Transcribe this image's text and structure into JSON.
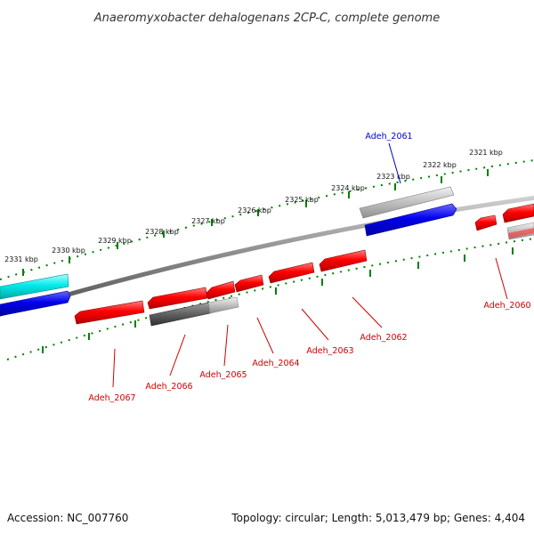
{
  "title": "Anaeromyxobacter dehalogenans 2CP-C, complete genome",
  "footer": {
    "accession": "Accession: NC_007760",
    "summary": "Topology: circular; Length: 5,013,479 bp; Genes: 4,404"
  },
  "scale_labels": [
    "2321 kbp",
    "2322 kbp",
    "2323 kbp",
    "2324 kbp",
    "2325 kbp",
    "2326 kbp",
    "2327 kbp",
    "2328 kbp",
    "2329 kbp",
    "2330 kbp",
    "2331 kbp"
  ],
  "gene_labels": [
    "Adeh_2060",
    "Adeh_2061",
    "Adeh_2062",
    "Adeh_2063",
    "Adeh_2064",
    "Adeh_2065",
    "Adeh_2066",
    "Adeh_2067"
  ],
  "colors": {
    "forward_gene": "#0000e0",
    "reverse_gene": "#e00000",
    "highlight_gene": "#00e6e6",
    "pseudo_gene": "#b0b0b0",
    "scale": "#008000",
    "backbone": "#808080"
  }
}
